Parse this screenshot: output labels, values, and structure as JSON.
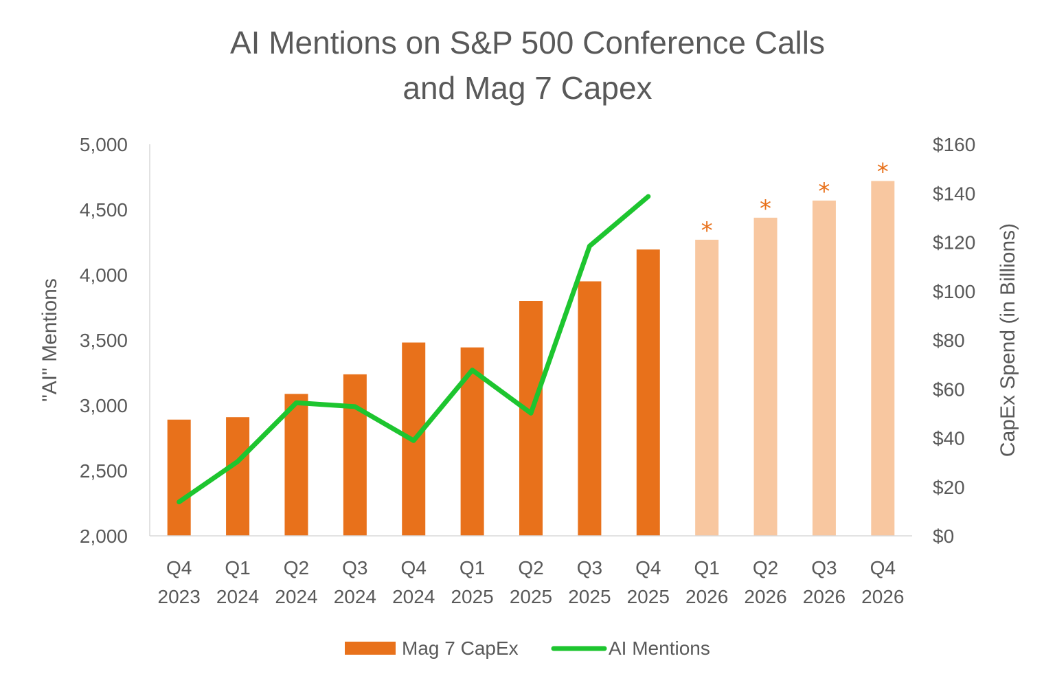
{
  "chart_data": {
    "type": "bar",
    "title": [
      "AI Mentions on S&P 500 Conference Calls",
      "and Mag 7 Capex"
    ],
    "categories": [
      [
        "Q4",
        "2023"
      ],
      [
        "Q1",
        "2024"
      ],
      [
        "Q2",
        "2024"
      ],
      [
        "Q3",
        "2024"
      ],
      [
        "Q4",
        "2024"
      ],
      [
        "Q1",
        "2025"
      ],
      [
        "Q2",
        "2025"
      ],
      [
        "Q3",
        "2025"
      ],
      [
        "Q4",
        "2025"
      ],
      [
        "Q1",
        "2026"
      ],
      [
        "Q2",
        "2026"
      ],
      [
        "Q3",
        "2026"
      ],
      [
        "Q4",
        "2026"
      ]
    ],
    "y_left": {
      "label": "\"AI\" Mentions",
      "range": [
        2000,
        5000
      ],
      "ticks": [
        2000,
        2500,
        3000,
        3500,
        4000,
        4500,
        5000
      ],
      "tick_labels": [
        "2,000",
        "2,500",
        "3,000",
        "3,500",
        "4,000",
        "4,500",
        "5,000"
      ]
    },
    "y_right": {
      "label": "CapEx Spend (in Billions)",
      "range": [
        0,
        160
      ],
      "ticks": [
        0,
        20,
        40,
        60,
        80,
        100,
        120,
        140,
        160
      ],
      "tick_labels": [
        "$0",
        "$20",
        "$40",
        "$60",
        "$80",
        "$100",
        "$120",
        "$140",
        "$160"
      ]
    },
    "series": [
      {
        "name": "Mag 7 CapEx",
        "type": "bar",
        "axis": "right",
        "values": [
          47.5,
          48.5,
          58,
          66,
          79,
          77,
          96,
          104,
          117,
          121,
          130,
          137,
          145
        ],
        "estimated": [
          false,
          false,
          false,
          false,
          false,
          false,
          false,
          false,
          false,
          true,
          true,
          true,
          true
        ],
        "estimate_marker": "*",
        "color": "#E8711B",
        "estimate_color": "#F8C7A0",
        "marker_color": "#E8711B"
      },
      {
        "name": "AI Mentions",
        "type": "line",
        "axis": "left",
        "values": [
          2260,
          2570,
          3020,
          2990,
          2730,
          3270,
          2940,
          4220,
          4600,
          null,
          null,
          null,
          null
        ],
        "color": "#1DC52F"
      }
    ],
    "grid": false,
    "legend_position": "bottom"
  }
}
